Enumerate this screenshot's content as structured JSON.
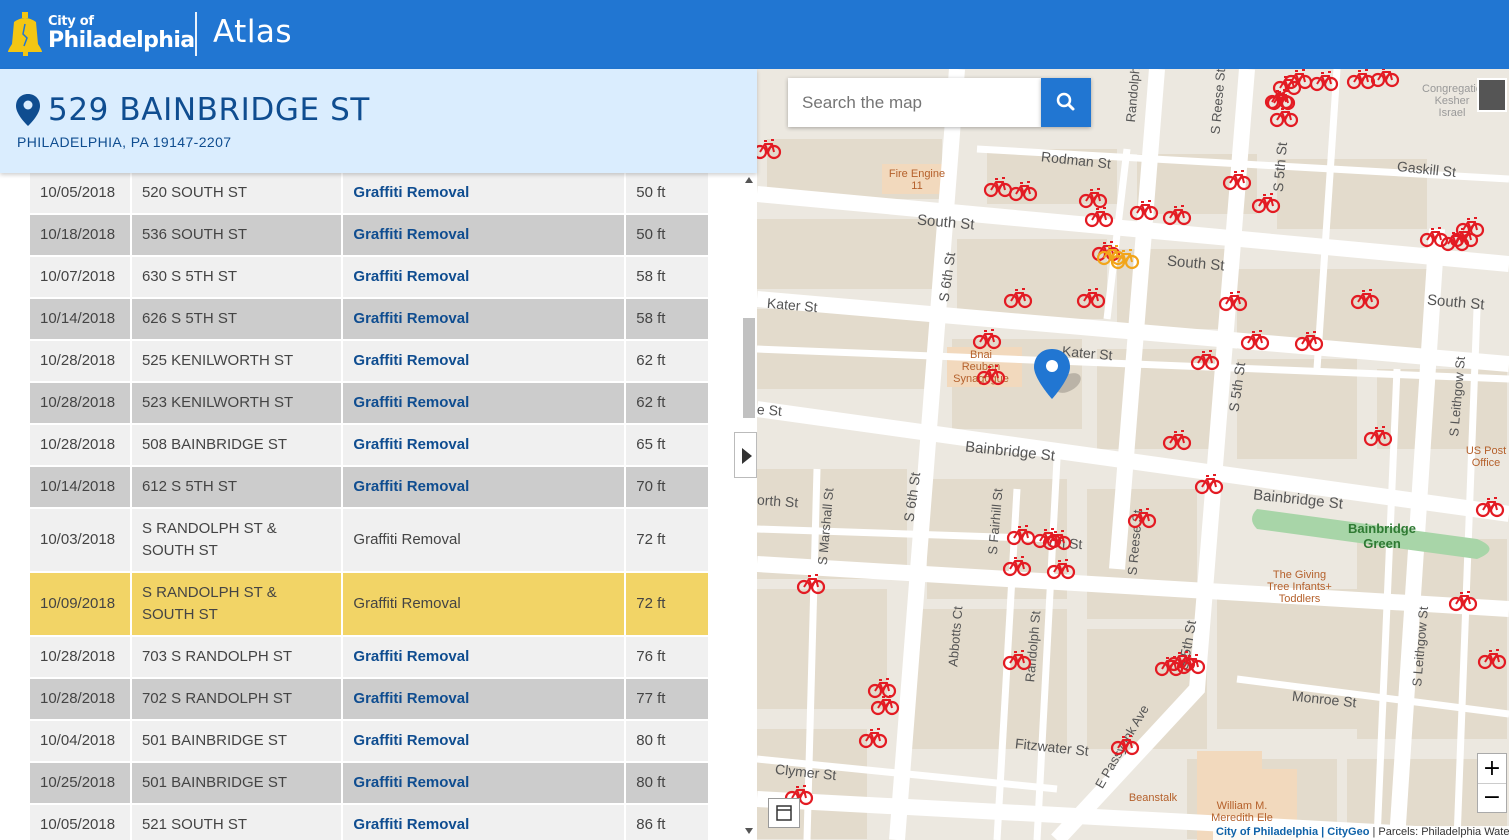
{
  "header": {
    "logo_city_of": "City of",
    "logo_philadelphia": "Philadelphia",
    "app_title": "Atlas"
  },
  "address": {
    "street": "529 BAINBRIDGE ST",
    "city_line": "PHILADELPHIA, PA 19147-2207"
  },
  "table": {
    "rows": [
      {
        "date": "10/05/2018",
        "address": "520 SOUTH ST",
        "type": "Graffiti Removal",
        "distance": "50 ft",
        "link": true
      },
      {
        "date": "10/18/2018",
        "address": "536 SOUTH ST",
        "type": "Graffiti Removal",
        "distance": "50 ft",
        "link": true
      },
      {
        "date": "10/07/2018",
        "address": "630 S 5TH ST",
        "type": "Graffiti Removal",
        "distance": "58 ft",
        "link": true
      },
      {
        "date": "10/14/2018",
        "address": "626 S 5TH ST",
        "type": "Graffiti Removal",
        "distance": "58 ft",
        "link": true
      },
      {
        "date": "10/28/2018",
        "address": "525 KENILWORTH ST",
        "type": "Graffiti Removal",
        "distance": "62 ft",
        "link": true
      },
      {
        "date": "10/28/2018",
        "address": "523 KENILWORTH ST",
        "type": "Graffiti Removal",
        "distance": "62 ft",
        "link": true
      },
      {
        "date": "10/28/2018",
        "address": "508 BAINBRIDGE ST",
        "type": "Graffiti Removal",
        "distance": "65 ft",
        "link": true
      },
      {
        "date": "10/14/2018",
        "address": "612 S 5TH ST",
        "type": "Graffiti Removal",
        "distance": "70 ft",
        "link": true
      },
      {
        "date": "10/03/2018",
        "address": "S RANDOLPH ST & SOUTH ST",
        "type": "Graffiti Removal",
        "distance": "72 ft",
        "link": false
      },
      {
        "date": "10/09/2018",
        "address": "S RANDOLPH ST & SOUTH ST",
        "type": "Graffiti Removal",
        "distance": "72 ft",
        "link": false,
        "highlighted": true
      },
      {
        "date": "10/28/2018",
        "address": "703 S RANDOLPH ST",
        "type": "Graffiti Removal",
        "distance": "76 ft",
        "link": true
      },
      {
        "date": "10/28/2018",
        "address": "702 S RANDOLPH ST",
        "type": "Graffiti Removal",
        "distance": "77 ft",
        "link": true
      },
      {
        "date": "10/04/2018",
        "address": "501 BAINBRIDGE ST",
        "type": "Graffiti Removal",
        "distance": "80 ft",
        "link": true
      },
      {
        "date": "10/25/2018",
        "address": "501 BAINBRIDGE ST",
        "type": "Graffiti Removal",
        "distance": "80 ft",
        "link": true
      },
      {
        "date": "10/05/2018",
        "address": "521 SOUTH ST",
        "type": "Graffiti Removal",
        "distance": "86 ft",
        "link": true
      }
    ]
  },
  "map": {
    "search_placeholder": "Search the map",
    "zoom_in": "+",
    "zoom_out": "−",
    "attribution_link": "City of Philadelphia | CityGeo",
    "attribution_rest": " | Parcels: Philadelphia Wate",
    "street_labels": [
      "Rodman St",
      "Gaskill St",
      "South St",
      "South St",
      "South St",
      "Kater St",
      "Kater St",
      "Bainbridge St",
      "Bainbridge St",
      "S 6th St",
      "S 6th St",
      "S 5th St",
      "S 5th St",
      "S 5th St",
      "Randolph",
      "S Reese St",
      "S Reese St",
      "S Marshall St",
      "S Fairhill St",
      "Randolph St",
      "Abbotts Ct",
      "S Leithgow St",
      "S Leithgow St",
      "Monroe St",
      "Fitzwater St",
      "Clymer St",
      "E Passyunk Ave",
      "orth St",
      "rth St",
      "e St"
    ],
    "poi_labels": [
      "Fire Engine 11",
      "Bnai Reuben Synagogue",
      "Bainbridge Green",
      "The Giving Tree Infants+ Toddlers",
      "US Post Office",
      "Beanstalk",
      "William M. Meredith Ele",
      "Congregation Kesher Israel"
    ],
    "colors": {
      "bike_marker": "#e31b23",
      "selected_marker": "#f2a51a",
      "pin": "#2176d2"
    }
  }
}
